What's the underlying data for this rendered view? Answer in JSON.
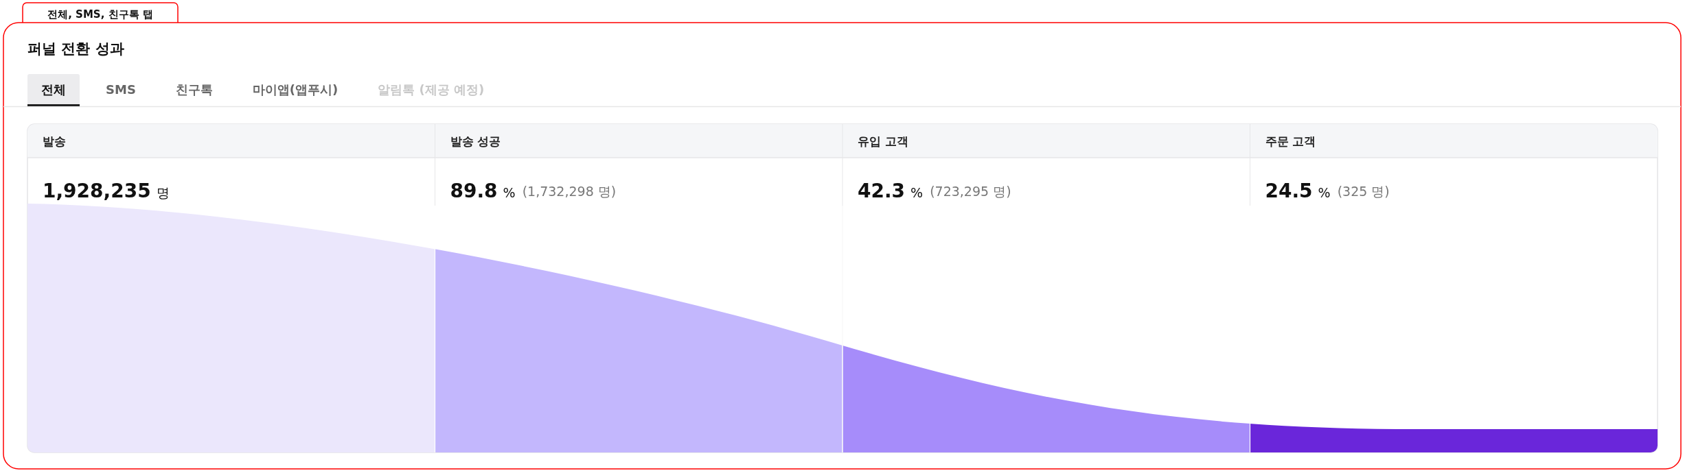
{
  "chart_data": {
    "type": "other",
    "title": "퍼널 전환 성과",
    "annotations": [
      "전체, SMS, 친구톡 탭",
      "전체",
      "SMS",
      "친구톡",
      "마이앱(앱푸시)",
      "알림톡 (제공 예정)"
    ],
    "categories": [
      "발송",
      "발송 성공",
      "유입 고객",
      "주문 고객"
    ],
    "colors": [
      "#ebe7fc",
      "#c3b7fd",
      "#a68cfa",
      "#6a26da"
    ],
    "series": [
      {
        "values": [
          1928235,
          1732298,
          723295,
          325
        ],
        "value_labels": [
          "1,928,235 명",
          "(1,732,298 명)",
          "(723,295 명)",
          "(325 명)"
        ]
      },
      {
        "values": [
          null,
          89.8,
          42.3,
          24.5
        ],
        "value_labels": [
          null,
          "89.8 %",
          "42.3 %",
          "24.5 %"
        ]
      }
    ]
  }
}
